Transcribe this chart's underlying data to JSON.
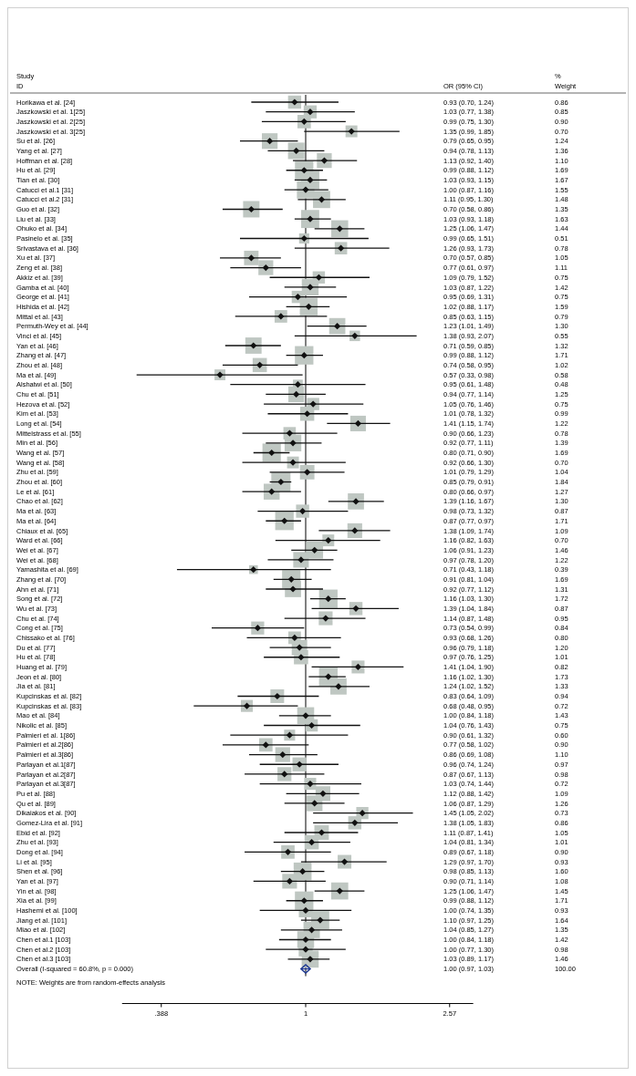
{
  "chart_data": {
    "type": "scatter",
    "orientation": "horizontal",
    "log": "x",
    "xlim": [
      0.3,
      3
    ],
    "xticks": [
      {
        "value": 0.388,
        "label": ".388"
      },
      1,
      2.57
    ],
    "ref_lines": [
      {
        "axis": "x",
        "value": 1,
        "color": "#000000"
      }
    ],
    "categories": [
      "Horikawa et al. [24]",
      "Jaszkowski et al. 1[25]",
      "Jaszkowski et al. 2[25]",
      "Jaszkowski et al. 3[25]",
      "Su et al. [26]",
      "Yang et al. [27]",
      "Hoffman et al. [28]",
      "Hu et al. [29]",
      "Tian et al. [30]",
      "Catucci et al.1 [31]",
      "Catucci et al.2 [31]",
      "Guo et al. [32]",
      "Liu et al. [33]",
      "Ohuko et al. [34]",
      "Pasinelo et al. [35]",
      "Srivastava et al. [36]",
      "Xu et al. [37]",
      "Zeng et al. [38]",
      "Akkiz et al. [39]",
      "Gamba et al. [40]",
      "George et al. [41]",
      "Hishida et al. [42]",
      "Mittal et al. [43]",
      "Permuth-Wey et al. [44]",
      "Vinci et al. [45]",
      "Yan et al. [46]",
      "Zhang et al. [47]",
      "Zhou et al. [48]",
      "Ma et al. [49]",
      "Alshatwi et al. [50]",
      "Chu et al. [51]",
      "Hezova et al. [52]",
      "Kim et al. [53]",
      "Long et al. [54]",
      "Mittelstrass et al. [55]",
      "Min et al. [56]",
      "Wang et al. [57]",
      "Wang et al. [58]",
      "Zhu et al. [59]",
      "Zhou et al. [60]",
      "Le et al. [61]",
      "Chao et al. [62]",
      "Ma et al. [63]",
      "Ma et al. [64]",
      "Chiaux et al. [65]",
      "Ward et al. [66]",
      "Wei et al. [67]",
      "Wei et al. [68]",
      "Yamashita et al. [69]",
      "Zhang et al. [70]",
      "Ahn et al. [71]",
      "Song et al. [72]",
      "Wu et al. [73]",
      "Chu et al. [74]",
      "Cong et al. [75]",
      "Chissako et al. [76]",
      "Du et al. [77]",
      "Hu et al. [78]",
      "Huang et al. [79]",
      "Jeon et al. [80]",
      "Jia et al. [81]",
      "Kupcinskas et al. [82]",
      "Kupcinskas et al. [83]",
      "Mao et al. [84]",
      "Nikolic et al. [85]",
      "Palmieri et al. 1[86]",
      "Palmieri et al.2[86]",
      "Palmieri et al.3[86]",
      "Parlayan et al.1[87]",
      "Parlayan et al.2[87]",
      "Parlayan et al.3[87]",
      "Pu et al. [88]",
      "Qu et al. [89]",
      "Dikaiakos et al. [90]",
      "Gomez-Lira et al. [91]",
      "Ebid et al. [92]",
      "Zhu et al. [93]",
      "Dong et al. [94]",
      "Li et al. [95]",
      "Shen et al. [96]",
      "Yan et al. [97]",
      "Yin et al. [98]",
      "Xia et al. [99]",
      "Hashemi et al. [100]",
      "Jiang et al. [101]",
      "Miao et al. [102]",
      "Chen et al.1 [103]",
      "Chen et al.2 [103]",
      "Chen et al.3 [103]",
      "Overall  (I-squared = 60.8%, p = 0.000)"
    ],
    "series": [
      {
        "type": "bubble",
        "color": "#bfc7c2",
        "marker": "square",
        "values": [
          0.93,
          1.03,
          0.99,
          1.35,
          0.79,
          0.94,
          1.13,
          0.99,
          1.03,
          1.0,
          1.11,
          0.7,
          1.03,
          1.25,
          0.99,
          1.26,
          0.7,
          0.77,
          1.09,
          1.03,
          0.95,
          1.02,
          0.85,
          1.23,
          1.38,
          0.71,
          0.99,
          0.74,
          0.57,
          0.95,
          0.94,
          1.05,
          1.01,
          1.41,
          0.9,
          0.92,
          0.8,
          0.92,
          1.01,
          0.85,
          0.8,
          1.39,
          0.98,
          0.87,
          1.38,
          1.16,
          1.06,
          0.97,
          0.71,
          0.91,
          0.92,
          1.16,
          1.39,
          1.14,
          0.73,
          0.93,
          0.96,
          0.97,
          1.41,
          1.16,
          1.24,
          0.83,
          0.68,
          1.0,
          1.04,
          0.9,
          0.77,
          0.86,
          0.96,
          0.87,
          1.03,
          1.12,
          1.06,
          1.45,
          1.38,
          1.11,
          1.04,
          0.89,
          1.29,
          0.98,
          0.9,
          1.25,
          0.99,
          1.0,
          1.1,
          1.04,
          1.0,
          1.0,
          1.03,
          null
        ],
        "sizes": [
          0.47,
          0.46,
          0.49,
          0.38,
          0.67,
          0.74,
          0.6,
          0.92,
          0.91,
          0.84,
          0.8,
          0.73,
          0.89,
          0.78,
          0.28,
          0.42,
          0.57,
          0.6,
          0.41,
          0.77,
          0.41,
          0.86,
          0.43,
          0.71,
          0.3,
          0.72,
          0.93,
          0.55,
          0.32,
          0.26,
          0.68,
          0.41,
          0.54,
          0.66,
          0.42,
          0.76,
          0.92,
          0.38,
          0.57,
          1,
          0.69,
          0.71,
          0.47,
          0.93,
          0.59,
          0.38,
          0.79,
          0.66,
          0.21,
          0.92,
          0.71,
          0.93,
          0.47,
          0.52,
          0.46,
          0.43,
          0.65,
          0.55,
          0.45,
          0.94,
          0.72,
          0.51,
          0.39,
          0.78,
          0.41,
          0.33,
          0.49,
          0.6,
          0.53,
          0.53,
          0.39,
          0.59,
          0.68,
          0.4,
          0.47,
          0.57,
          0.55,
          0.49,
          0.51,
          0.87,
          0.59,
          0.79,
          0.93,
          0.51,
          0.89,
          0.73,
          0.77,
          0.53,
          0.79,
          null
        ]
      },
      {
        "type": "scatter",
        "color": "#111111",
        "marker": "diamond",
        "values": [
          0.93,
          1.03,
          0.99,
          1.35,
          0.79,
          0.94,
          1.13,
          0.99,
          1.03,
          1.0,
          1.11,
          0.7,
          1.03,
          1.25,
          0.99,
          1.26,
          0.7,
          0.77,
          1.09,
          1.03,
          0.95,
          1.02,
          0.85,
          1.23,
          1.38,
          0.71,
          0.99,
          0.74,
          0.57,
          0.95,
          0.94,
          1.05,
          1.01,
          1.41,
          0.9,
          0.92,
          0.8,
          0.92,
          1.01,
          0.85,
          0.8,
          1.39,
          0.98,
          0.87,
          1.38,
          1.16,
          1.06,
          0.97,
          0.71,
          0.91,
          0.92,
          1.16,
          1.39,
          1.14,
          0.73,
          0.93,
          0.96,
          0.97,
          1.41,
          1.16,
          1.24,
          0.83,
          0.68,
          1.0,
          1.04,
          0.9,
          0.77,
          0.86,
          0.96,
          0.87,
          1.03,
          1.12,
          1.06,
          1.45,
          1.38,
          1.11,
          1.04,
          0.89,
          1.29,
          0.98,
          0.9,
          1.25,
          0.99,
          1.0,
          1.1,
          1.04,
          1.0,
          1.0,
          1.03,
          null
        ],
        "errors": [
          [
            0.7,
            1.24
          ],
          [
            0.77,
            1.38
          ],
          [
            0.75,
            1.3
          ],
          [
            0.99,
            1.85
          ],
          [
            0.65,
            0.95
          ],
          [
            0.78,
            1.13
          ],
          [
            0.92,
            1.4
          ],
          [
            0.88,
            1.12
          ],
          [
            0.93,
            1.15
          ],
          [
            0.87,
            1.16
          ],
          [
            0.95,
            1.3
          ],
          [
            0.58,
            0.86
          ],
          [
            0.93,
            1.18
          ],
          [
            1.06,
            1.47
          ],
          [
            0.65,
            1.51
          ],
          [
            0.93,
            1.73
          ],
          [
            0.57,
            0.85
          ],
          [
            0.61,
            0.97
          ],
          [
            0.79,
            1.52
          ],
          [
            0.87,
            1.22
          ],
          [
            0.69,
            1.31
          ],
          [
            0.88,
            1.17
          ],
          [
            0.63,
            1.15
          ],
          [
            1.01,
            1.49
          ],
          [
            0.93,
            2.07
          ],
          [
            0.59,
            0.85
          ],
          [
            0.88,
            1.12
          ],
          [
            0.58,
            0.95
          ],
          [
            0.33,
            0.98
          ],
          [
            0.61,
            1.48
          ],
          [
            0.77,
            1.14
          ],
          [
            0.76,
            1.46
          ],
          [
            0.78,
            1.32
          ],
          [
            1.15,
            1.74
          ],
          [
            0.66,
            1.23
          ],
          [
            0.77,
            1.11
          ],
          [
            0.71,
            0.9
          ],
          [
            0.66,
            1.3
          ],
          [
            0.79,
            1.29
          ],
          [
            0.79,
            0.91
          ],
          [
            0.66,
            0.97
          ],
          [
            1.16,
            1.67
          ],
          [
            0.73,
            1.32
          ],
          [
            0.77,
            0.97
          ],
          [
            1.09,
            1.74
          ],
          [
            0.82,
            1.63
          ],
          [
            0.91,
            1.23
          ],
          [
            0.78,
            1.2
          ],
          [
            0.43,
            1.18
          ],
          [
            0.81,
            1.04
          ],
          [
            0.77,
            1.12
          ],
          [
            1.03,
            1.3
          ],
          [
            1.04,
            1.84
          ],
          [
            0.87,
            1.48
          ],
          [
            0.54,
            0.99
          ],
          [
            0.68,
            1.26
          ],
          [
            0.79,
            1.18
          ],
          [
            0.76,
            1.25
          ],
          [
            1.04,
            1.9
          ],
          [
            1.02,
            1.3
          ],
          [
            1.02,
            1.52
          ],
          [
            0.64,
            1.09
          ],
          [
            0.48,
            0.95
          ],
          [
            0.84,
            1.18
          ],
          [
            0.76,
            1.43
          ],
          [
            0.61,
            1.32
          ],
          [
            0.58,
            1.02
          ],
          [
            0.69,
            1.08
          ],
          [
            0.74,
            1.24
          ],
          [
            0.67,
            1.13
          ],
          [
            0.74,
            1.44
          ],
          [
            0.88,
            1.42
          ],
          [
            0.87,
            1.29
          ],
          [
            1.05,
            2.02
          ],
          [
            1.05,
            1.83
          ],
          [
            0.87,
            1.41
          ],
          [
            0.81,
            1.34
          ],
          [
            0.67,
            1.18
          ],
          [
            0.97,
            1.7
          ],
          [
            0.85,
            1.13
          ],
          [
            0.71,
            1.14
          ],
          [
            1.06,
            1.47
          ],
          [
            0.88,
            1.12
          ],
          [
            0.74,
            1.35
          ],
          [
            0.97,
            1.25
          ],
          [
            0.85,
            1.27
          ],
          [
            0.84,
            1.18
          ],
          [
            0.77,
            1.3
          ],
          [
            0.89,
            1.17
          ],
          null
        ]
      },
      {
        "type": "scatter",
        "color": "#1f3a93",
        "marker": "diamond",
        "values": [
          null,
          null,
          null,
          null,
          null,
          null,
          null,
          null,
          null,
          null,
          null,
          null,
          null,
          null,
          null,
          null,
          null,
          null,
          null,
          null,
          null,
          null,
          null,
          null,
          null,
          null,
          null,
          null,
          null,
          null,
          null,
          null,
          null,
          null,
          null,
          null,
          null,
          null,
          null,
          null,
          null,
          null,
          null,
          null,
          null,
          null,
          null,
          null,
          null,
          null,
          null,
          null,
          null,
          null,
          null,
          null,
          null,
          null,
          null,
          null,
          null,
          null,
          null,
          null,
          null,
          null,
          null,
          null,
          null,
          null,
          null,
          null,
          null,
          null,
          null,
          null,
          null,
          null,
          null,
          null,
          null,
          null,
          null,
          null,
          null,
          null,
          null,
          null,
          null,
          1.0
        ],
        "errors": [
          null,
          null,
          null,
          null,
          null,
          null,
          null,
          null,
          null,
          null,
          null,
          null,
          null,
          null,
          null,
          null,
          null,
          null,
          null,
          null,
          null,
          null,
          null,
          null,
          null,
          null,
          null,
          null,
          null,
          null,
          null,
          null,
          null,
          null,
          null,
          null,
          null,
          null,
          null,
          null,
          null,
          null,
          null,
          null,
          null,
          null,
          null,
          null,
          null,
          null,
          null,
          null,
          null,
          null,
          null,
          null,
          null,
          null,
          null,
          null,
          null,
          null,
          null,
          null,
          null,
          null,
          null,
          null,
          null,
          null,
          null,
          null,
          null,
          null,
          null,
          null,
          null,
          null,
          null,
          null,
          null,
          null,
          null,
          null,
          null,
          null,
          null,
          null,
          null,
          [
            0.97,
            1.03
          ]
        ]
      }
    ],
    "annotations": [
      "Study",
      "ID",
      "OR (95% CI)",
      "%",
      "Weight",
      "NOTE: Weights are from random-effects analysis",
      "0.86",
      "0.85",
      "0.90",
      "0.70",
      "1.24",
      "1.36",
      "1.10",
      "1.69",
      "1.67",
      "1.55",
      "1.48",
      "1.35",
      "1.63",
      "1.44",
      "0.51",
      "0.78",
      "1.05",
      "1.11",
      "0.75",
      "1.42",
      "0.75",
      "1.59",
      "0.79",
      "1.30",
      "0.55",
      "1.32",
      "1.71",
      "1.02",
      "0.58",
      "0.48",
      "1.25",
      "0.75",
      "0.99",
      "1.22",
      "0.78",
      "1.39",
      "1.69",
      "0.70",
      "1.04",
      "1.84",
      "1.27",
      "1.30",
      "0.87",
      "1.71",
      "1.09",
      "0.70",
      "1.46",
      "1.22",
      "0.39",
      "1.69",
      "1.31",
      "1.72",
      "0.87",
      "0.95",
      "0.84",
      "0.80",
      "1.20",
      "1.01",
      "0.82",
      "1.73",
      "1.33",
      "0.94",
      "0.72",
      "1.43",
      "0.75",
      "0.60",
      "0.90",
      "1.10",
      "0.97",
      "0.98",
      "0.72",
      "1.09",
      "1.26",
      "0.73",
      "0.86",
      "1.05",
      "1.01",
      "0.90",
      "0.93",
      "1.60",
      "1.08",
      "1.45",
      "1.71",
      "0.93",
      "1.64",
      "1.35",
      "1.42",
      "0.98",
      "1.46",
      "100.00",
      "0.93 (0.70, 1.24)",
      "1.03 (0.77, 1.38)",
      "0.99 (0.75, 1.30)",
      "1.35 (0.99, 1.85)",
      "0.79 (0.65, 0.95)",
      "0.94 (0.78, 1.13)",
      "1.13 (0.92, 1.40)",
      "0.99 (0.88, 1.12)",
      "1.03 (0.93, 1.15)",
      "1.00 (0.87, 1.16)",
      "1.11 (0.95, 1.30)",
      "0.70 (0.58, 0.86)",
      "1.03 (0.93, 1.18)",
      "1.25 (1.06, 1.47)",
      "0.99 (0.65, 1.51)",
      "1.26 (0.93, 1.73)",
      "0.70 (0.57, 0.85)",
      "0.77 (0.61, 0.97)",
      "1.09 (0.79, 1.52)",
      "1.03 (0.87, 1.22)",
      "0.95 (0.69, 1.31)",
      "1.02 (0.88, 1.17)",
      "0.85 (0.63, 1.15)",
      "1.23 (1.01, 1.49)",
      "1.38 (0.93, 2.07)",
      "0.71 (0.59, 0.85)",
      "0.99 (0.88, 1.12)",
      "0.74 (0.58, 0.95)",
      "0.57 (0.33, 0.98)",
      "0.95 (0.61, 1.48)",
      "0.94 (0.77, 1.14)",
      "1.05 (0.76, 1.46)",
      "1.01 (0.78, 1.32)",
      "1.41 (1.15, 1.74)",
      "0.90 (0.66, 1.23)",
      "0.92 (0.77, 1.11)",
      "0.80 (0.71, 0.90)",
      "0.92 (0.66, 1.30)",
      "1.01 (0.79, 1.29)",
      "0.85 (0.79, 0.91)",
      "0.80 (0.66, 0.97)",
      "1.39 (1.16, 1.67)",
      "0.98 (0.73, 1.32)",
      "0.87 (0.77, 0.97)",
      "1.38 (1.09, 1.74)",
      "1.16 (0.82, 1.63)",
      "1.06 (0.91, 1.23)",
      "0.97 (0.78, 1.20)",
      "0.71 (0.43, 1.18)",
      "0.91 (0.81, 1.04)",
      "0.92 (0.77, 1.12)",
      "1.16 (1.03, 1.30)",
      "1.39 (1.04, 1.84)",
      "1.14 (0.87, 1.48)",
      "0.73 (0.54, 0.99)",
      "0.93 (0.68, 1.26)",
      "0.96 (0.79, 1.18)",
      "0.97 (0.76, 1.25)",
      "1.41 (1.04, 1.90)",
      "1.16 (1.02, 1.30)",
      "1.24 (1.02, 1.52)",
      "0.83 (0.64, 1.09)",
      "0.68 (0.48, 0.95)",
      "1.00 (0.84, 1.18)",
      "1.04 (0.76, 1.43)",
      "0.90 (0.61, 1.32)",
      "0.77 (0.58, 1.02)",
      "0.86 (0.69, 1.08)",
      "0.96 (0.74, 1.24)",
      "0.87 (0.67, 1.13)",
      "1.03 (0.74, 1.44)",
      "1.12 (0.88, 1.42)",
      "1.06 (0.87, 1.29)",
      "1.45 (1.05, 2.02)",
      "1.38 (1.05, 1.83)",
      "1.11 (0.87, 1.41)",
      "1.04 (0.81, 1.34)",
      "0.89 (0.67, 1.18)",
      "1.29 (0.97, 1.70)",
      "0.98 (0.85, 1.13)",
      "0.90 (0.71, 1.14)",
      "1.25 (1.06, 1.47)",
      "0.99 (0.88, 1.12)",
      "1.00 (0.74, 1.35)",
      "1.10 (0.97, 1.25)",
      "1.04 (0.85, 1.27)",
      "1.00 (0.84, 1.18)",
      "1.00 (0.77, 1.30)",
      "1.03 (0.89, 1.17)",
      "1.00 (0.97, 1.03)"
    ]
  }
}
